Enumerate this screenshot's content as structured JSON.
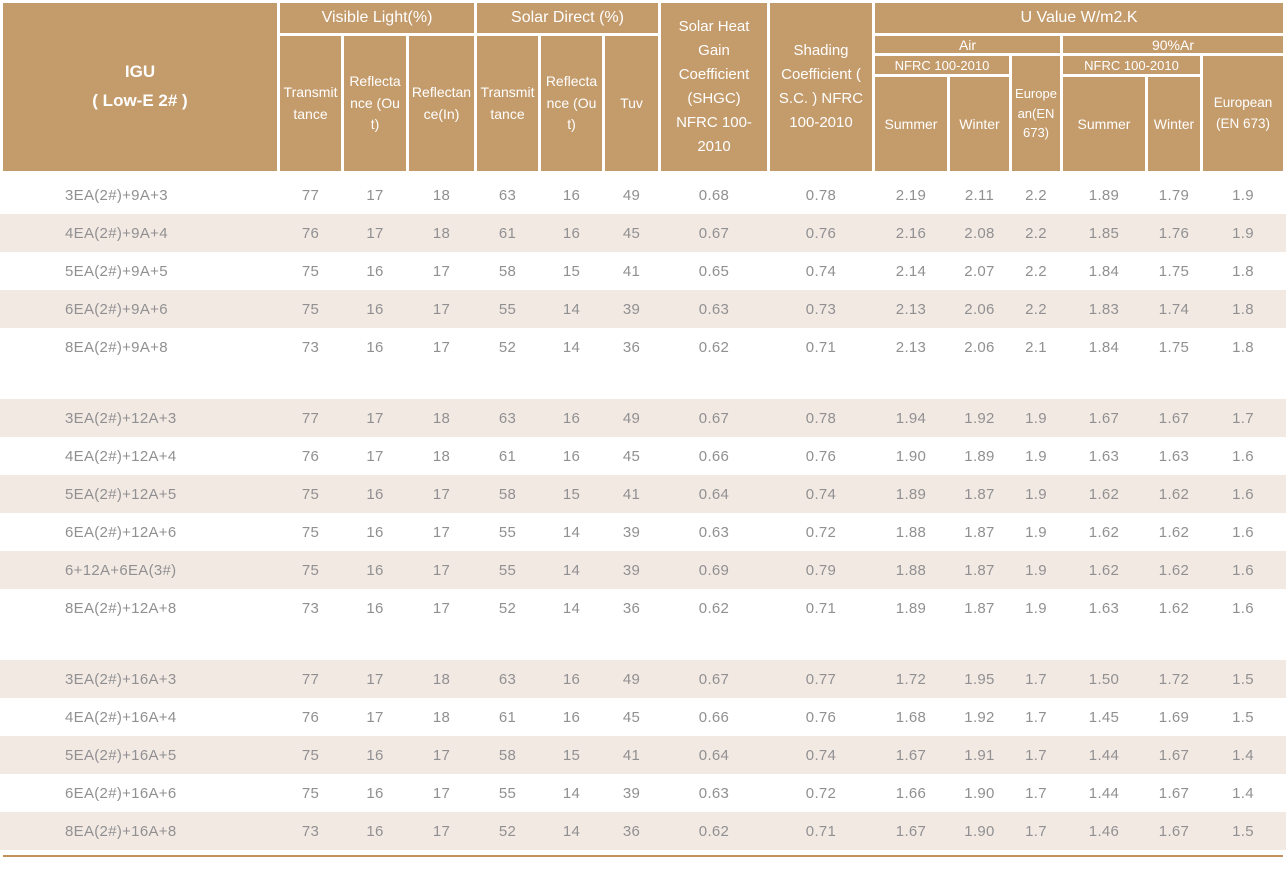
{
  "colors": {
    "header_bg": "#C49B6B",
    "header_text": "#FFFFFF",
    "stripe_bg": "#F3E9E3",
    "body_text": "#909092",
    "bottom_rule": "#C2925C"
  },
  "header": {
    "igu": {
      "line1": "IGU",
      "line2": "( Low-E 2# )"
    },
    "visible_light": {
      "label": "Visible Light(%)",
      "transmittance": "Transmittance",
      "reflectance_out": "Reflectance (Out)",
      "reflectance_in": "Reflectance(In)"
    },
    "solar_direct": {
      "label": "Solar Direct (%)",
      "transmittance": "Transmittance",
      "reflectance_out": "Reflectance (Out)",
      "tuv": "Tuv"
    },
    "shgc": "Solar Heat Gain Coefficient (SHGC) NFRC 100-2010",
    "shading_coefficient": "Shading Coefficient ( S.C. ) NFRC 100-2010",
    "u_value": {
      "label": "U Value W/m2.K",
      "air": {
        "label": "Air",
        "nfrc": "NFRC 100-2010",
        "summer": "Summer",
        "winter": "Winter",
        "european": "European(EN 673)"
      },
      "argon": {
        "label": "90%Ar",
        "nfrc": "NFRC 100-2010",
        "summer": "Summer",
        "winter": "Winter",
        "european": "European (EN 673)"
      }
    }
  },
  "columns_order": [
    "visible_light_transmittance",
    "visible_light_reflectance_out",
    "visible_light_reflectance_in",
    "solar_direct_transmittance",
    "solar_direct_reflectance_out",
    "tuv",
    "shgc",
    "shading_coefficient",
    "u_air_summer",
    "u_air_winter",
    "u_air_european",
    "u_ar_summer",
    "u_ar_winter",
    "u_ar_european"
  ],
  "groups": [
    {
      "rows": [
        {
          "label": "3EA(2#)+9A+3",
          "values": [
            "77",
            "17",
            "18",
            "63",
            "16",
            "49",
            "0.68",
            "0.78",
            "2.19",
            "2.11",
            "2.2",
            "1.89",
            "1.79",
            "1.9"
          ]
        },
        {
          "label": "4EA(2#)+9A+4",
          "values": [
            "76",
            "17",
            "18",
            "61",
            "16",
            "45",
            "0.67",
            "0.76",
            "2.16",
            "2.08",
            "2.2",
            "1.85",
            "1.76",
            "1.9"
          ]
        },
        {
          "label": "5EA(2#)+9A+5",
          "values": [
            "75",
            "16",
            "17",
            "58",
            "15",
            "41",
            "0.65",
            "0.74",
            "2.14",
            "2.07",
            "2.2",
            "1.84",
            "1.75",
            "1.8"
          ]
        },
        {
          "label": "6EA(2#)+9A+6",
          "values": [
            "75",
            "16",
            "17",
            "55",
            "14",
            "39",
            "0.63",
            "0.73",
            "2.13",
            "2.06",
            "2.2",
            "1.83",
            "1.74",
            "1.8"
          ]
        },
        {
          "label": "8EA(2#)+9A+8",
          "values": [
            "73",
            "16",
            "17",
            "52",
            "14",
            "36",
            "0.62",
            "0.71",
            "2.13",
            "2.06",
            "2.1",
            "1.84",
            "1.75",
            "1.8"
          ]
        }
      ]
    },
    {
      "rows": [
        {
          "label": "3EA(2#)+12A+3",
          "values": [
            "77",
            "17",
            "18",
            "63",
            "16",
            "49",
            "0.67",
            "0.78",
            "1.94",
            "1.92",
            "1.9",
            "1.67",
            "1.67",
            "1.7"
          ]
        },
        {
          "label": "4EA(2#)+12A+4",
          "values": [
            "76",
            "17",
            "18",
            "61",
            "16",
            "45",
            "0.66",
            "0.76",
            "1.90",
            "1.89",
            "1.9",
            "1.63",
            "1.63",
            "1.6"
          ]
        },
        {
          "label": "5EA(2#)+12A+5",
          "values": [
            "75",
            "16",
            "17",
            "58",
            "15",
            "41",
            "0.64",
            "0.74",
            "1.89",
            "1.87",
            "1.9",
            "1.62",
            "1.62",
            "1.6"
          ]
        },
        {
          "label": "6EA(2#)+12A+6",
          "values": [
            "75",
            "16",
            "17",
            "55",
            "14",
            "39",
            "0.63",
            "0.72",
            "1.88",
            "1.87",
            "1.9",
            "1.62",
            "1.62",
            "1.6"
          ]
        },
        {
          "label": "6+12A+6EA(3#)",
          "values": [
            "75",
            "16",
            "17",
            "55",
            "14",
            "39",
            "0.69",
            "0.79",
            "1.88",
            "1.87",
            "1.9",
            "1.62",
            "1.62",
            "1.6"
          ]
        },
        {
          "label": "8EA(2#)+12A+8",
          "values": [
            "73",
            "16",
            "17",
            "52",
            "14",
            "36",
            "0.62",
            "0.71",
            "1.89",
            "1.87",
            "1.9",
            "1.63",
            "1.62",
            "1.6"
          ]
        }
      ]
    },
    {
      "rows": [
        {
          "label": "3EA(2#)+16A+3",
          "values": [
            "77",
            "17",
            "18",
            "63",
            "16",
            "49",
            "0.67",
            "0.77",
            "1.72",
            "1.95",
            "1.7",
            "1.50",
            "1.72",
            "1.5"
          ]
        },
        {
          "label": "4EA(2#)+16A+4",
          "values": [
            "76",
            "17",
            "18",
            "61",
            "16",
            "45",
            "0.66",
            "0.76",
            "1.68",
            "1.92",
            "1.7",
            "1.45",
            "1.69",
            "1.5"
          ]
        },
        {
          "label": "5EA(2#)+16A+5",
          "values": [
            "75",
            "16",
            "17",
            "58",
            "15",
            "41",
            "0.64",
            "0.74",
            "1.67",
            "1.91",
            "1.7",
            "1.44",
            "1.67",
            "1.4"
          ]
        },
        {
          "label": "6EA(2#)+16A+6",
          "values": [
            "75",
            "16",
            "17",
            "55",
            "14",
            "39",
            "0.63",
            "0.72",
            "1.66",
            "1.90",
            "1.7",
            "1.44",
            "1.67",
            "1.4"
          ]
        },
        {
          "label": "8EA(2#)+16A+8",
          "values": [
            "73",
            "16",
            "17",
            "52",
            "14",
            "36",
            "0.62",
            "0.71",
            "1.67",
            "1.90",
            "1.7",
            "1.46",
            "1.67",
            "1.5"
          ]
        }
      ]
    }
  ]
}
